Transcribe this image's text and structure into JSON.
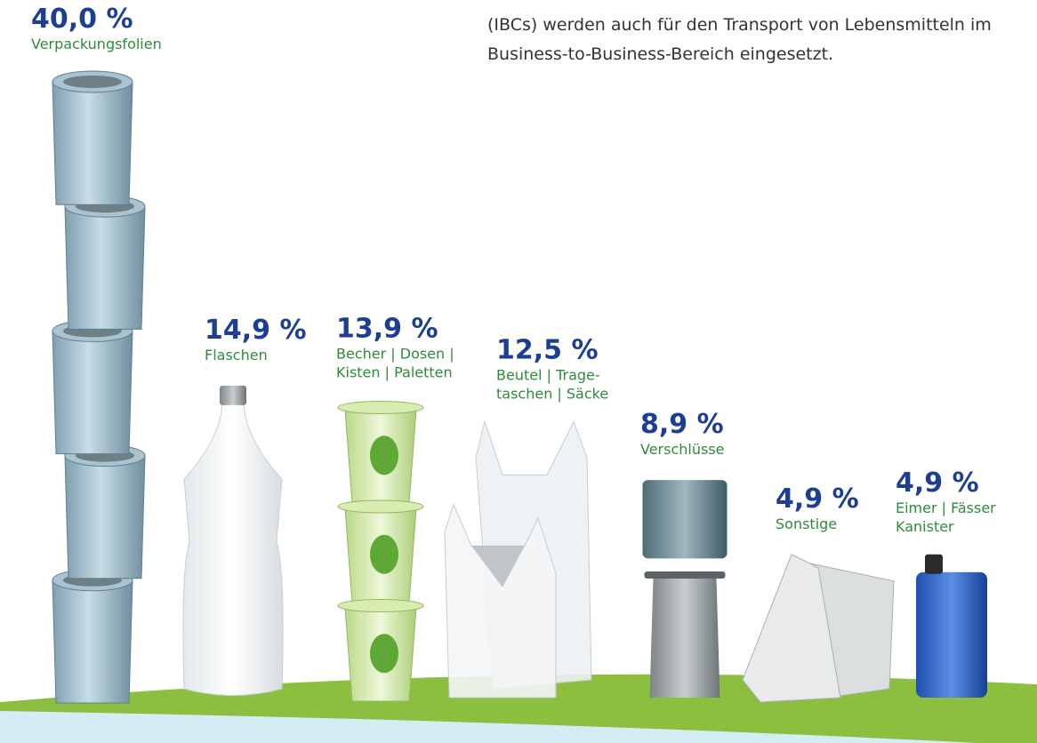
{
  "chart_data": {
    "type": "pictograph",
    "annotation": [
      "(IBCs) werden auch für den Transport von Lebensmitteln im",
      "Business-to-Business-Bereich eingesetzt."
    ],
    "categories": [
      [
        "Verpackungsfolien"
      ],
      [
        "Flaschen"
      ],
      [
        "Becher | Dosen |",
        "Kisten | Paletten"
      ],
      [
        "Beutel | Trage-",
        "taschen | Säcke"
      ],
      [
        "Verschlüsse"
      ],
      [
        "Sonstige"
      ],
      [
        "Eimer | Fässer",
        "Kanister"
      ]
    ],
    "values": [
      40.0,
      14.9,
      13.9,
      12.5,
      8.9,
      4.9,
      4.9
    ],
    "value_labels": [
      "40,0 %",
      "14,9 %",
      "13,9 %",
      "12,5 %",
      "8,9 %",
      "4,9 %",
      "4,9 %"
    ]
  }
}
